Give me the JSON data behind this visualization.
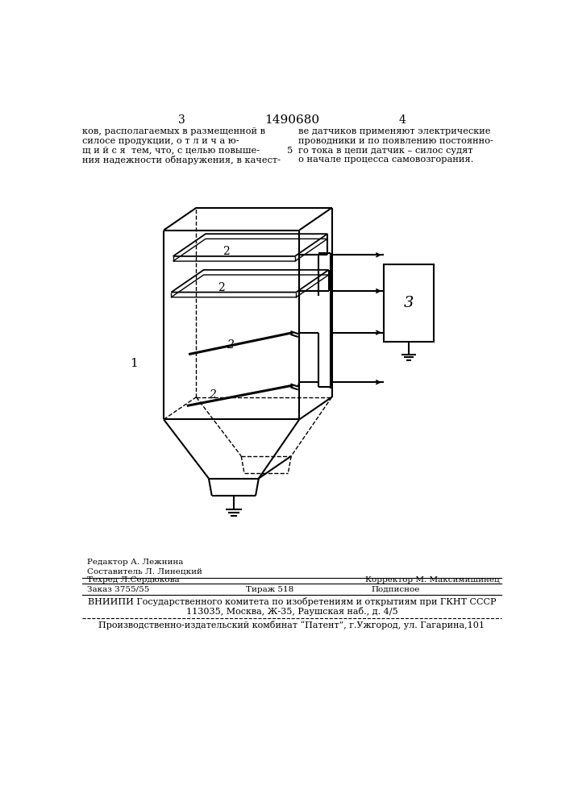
{
  "bg_color": "#ffffff",
  "page_num_left": "3",
  "page_num_center": "1490680",
  "page_num_right": "4",
  "text_left_line1": "ков, располагаемых в размещенной в",
  "text_left_line2": "силосе продукции, о т л и ч а ю-",
  "text_left_line3": "щ и й с я  тем, что, с целью повыше-",
  "text_left_line4": "ния надежности обнаружения, в качест-",
  "text_right_line1": "ве датчиков применяют электрические",
  "text_right_line2": "проводники и по появлению постоянно-",
  "text_right_line3": "го тока в цепи датчик – силос судят",
  "text_right_line4": "о начале процесса самовозгорания.",
  "footer_editor": "Редактор А. Лежнина",
  "footer_composer": "Составитель Л. Линецкий",
  "footer_techred": "Техред Л.Сердюкова",
  "footer_corrector": "Корректор М. Максимишинец",
  "footer_order": "Заказ 3755/55",
  "footer_circulation": "Тираж 518",
  "footer_subscription": "Подписное",
  "footer_vniipи": "ВНИИПИ Государственного комитета по изобретениям и открытиям при ГКНТ СССР",
  "footer_address": "113035, Москва, Ж-35, Раушская наб., д. 4/5",
  "footer_patent": "Производственно-издательский комбинат “Патент”, г.Ужгород, ул. Гагарина,101"
}
